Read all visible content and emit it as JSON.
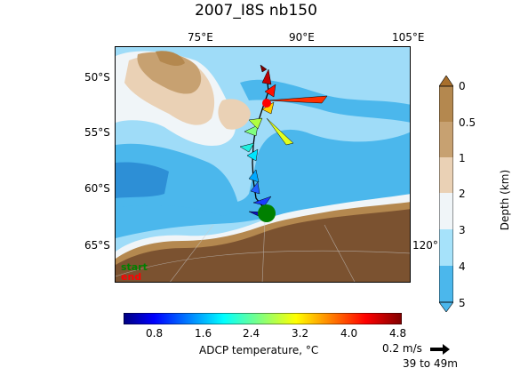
{
  "title": "2007_I8S nb150",
  "map": {
    "lon_labels": [
      "75°E",
      "90°E",
      "105°E"
    ],
    "lat_labels": [
      "50°S",
      "55°S",
      "60°S",
      "65°S"
    ],
    "edge_label": "120°",
    "legend": {
      "start": "start",
      "end": "end",
      "start_color": "#008000",
      "end_color": "#ff0000"
    },
    "colors": {
      "land": "#7b5230",
      "ocean_deep": "#4bb7ec",
      "ocean_mid": "#9fdcf8",
      "shelf": "#e6f3fa"
    }
  },
  "depth_colorbar": {
    "label": "Depth (km)",
    "ticks": [
      "0",
      "0.5",
      "1",
      "2",
      "3",
      "4",
      "5"
    ],
    "colors": [
      "#b4884f",
      "#c7a171",
      "#ead1b5",
      "#f0f5f8",
      "#a6e2fa",
      "#4bb7ec"
    ]
  },
  "temp_colorbar": {
    "label": "ADCP temperature, °C",
    "ticks": [
      "0.8",
      "1.6",
      "2.4",
      "3.2",
      "4.0",
      "4.8"
    ],
    "range": [
      0.2,
      4.8
    ]
  },
  "scale": {
    "speed": "0.2 m/s",
    "depth_range": "39 to 49m"
  }
}
